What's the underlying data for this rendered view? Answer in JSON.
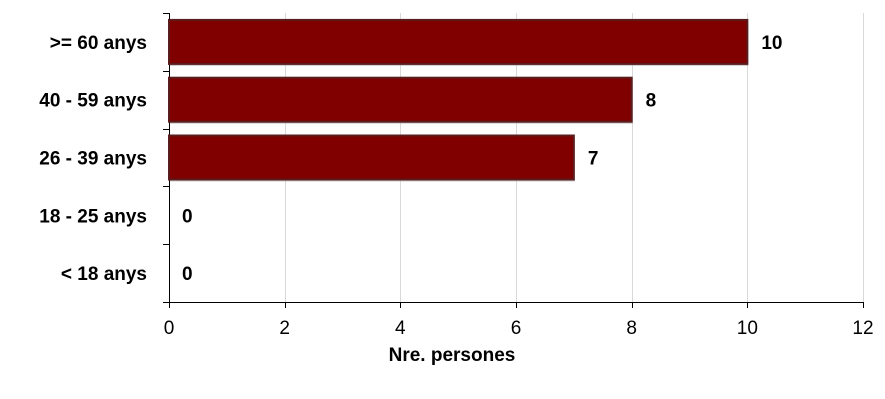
{
  "chart_data": {
    "type": "bar",
    "orientation": "horizontal",
    "categories": [
      ">= 60 anys",
      "40 - 59 anys",
      "26 - 39 anys",
      "18 - 25 anys",
      "< 18 anys"
    ],
    "values": [
      10,
      8,
      7,
      0,
      0
    ],
    "data_labels": [
      "10",
      "8",
      "7",
      "0",
      "0"
    ],
    "xlabel": "Nre. persones",
    "ylabel": "",
    "title": "",
    "xlim": [
      0,
      12
    ],
    "xticks": [
      0,
      2,
      4,
      6,
      8,
      10,
      12
    ],
    "xtick_labels": [
      "0",
      "2",
      "4",
      "6",
      "8",
      "10",
      "12"
    ],
    "grid": "vertical",
    "legend": "none",
    "colors": {
      "bar_fill": "#800000",
      "bar_stroke": "#5a1c1c",
      "grid": "#d9d9d9",
      "axis": "#000000"
    }
  }
}
